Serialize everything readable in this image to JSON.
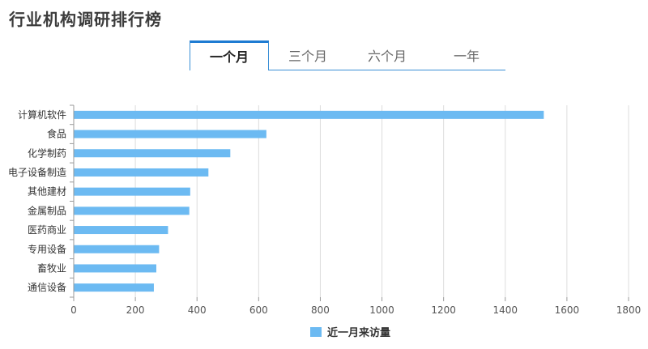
{
  "page": {
    "title": "行业机构调研排行榜"
  },
  "tabs": [
    {
      "label": "一个月",
      "active": true
    },
    {
      "label": "三个月",
      "active": false
    },
    {
      "label": "六个月",
      "active": false
    },
    {
      "label": "一年",
      "active": false
    }
  ],
  "colors": {
    "bar": "#6cbaf2",
    "grid": "#dcdcdc",
    "axis": "#999999",
    "tab_accent": "#1e7bd2"
  },
  "chart_data": {
    "type": "bar",
    "orientation": "horizontal",
    "title": "",
    "categories": [
      "计算机软件",
      "食品",
      "化学制药",
      "电子设备制造",
      "其他建材",
      "金属制品",
      "医药商业",
      "专用设备",
      "畜牧业",
      "通信设备"
    ],
    "series": [
      {
        "name": "近一月来访量",
        "values": [
          1525,
          625,
          508,
          437,
          378,
          375,
          306,
          277,
          268,
          260
        ]
      }
    ],
    "xlim": [
      0,
      1800
    ],
    "xticks": [
      0,
      200,
      400,
      600,
      800,
      1000,
      1200,
      1400,
      1600,
      1800
    ],
    "grid": true,
    "legend": "bottom-center"
  }
}
